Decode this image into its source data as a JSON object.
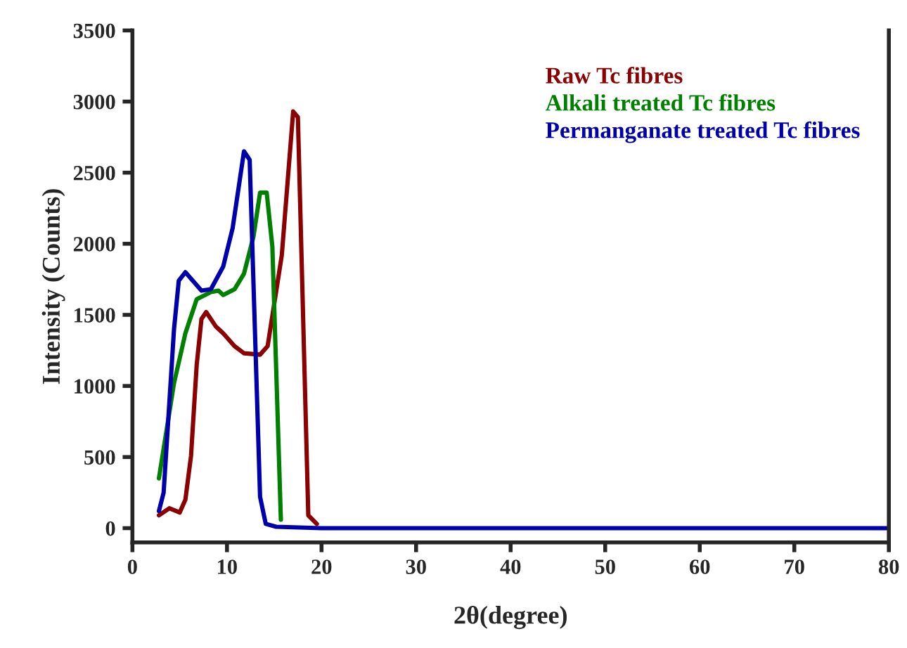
{
  "chart_data": {
    "type": "line",
    "xlabel": "2θ(degree)",
    "ylabel": "Intensity (Counts)",
    "xlim": [
      0,
      80
    ],
    "xticks": [
      0,
      10,
      20,
      30,
      40,
      50,
      60,
      70,
      80
    ],
    "ylim": [
      -100,
      3500
    ],
    "yticks": [
      0,
      500,
      1000,
      1500,
      2000,
      2500,
      3000,
      3500
    ],
    "grid": false,
    "legend": "top right",
    "marker": "none",
    "line_style": "solid",
    "series": [
      {
        "name": "Raw Tc fibres",
        "color": "#8b0000",
        "x": [
          2.8,
          3.9,
          5.0,
          5.6,
          6.2,
          6.8,
          7.3,
          7.8,
          8.8,
          9.6,
          10.8,
          11.8,
          13.5,
          14.3,
          15.8,
          17.0,
          17.5,
          18.6,
          19.5
        ],
        "values": [
          90,
          140,
          110,
          200,
          510,
          1150,
          1470,
          1520,
          1420,
          1370,
          1280,
          1230,
          1220,
          1280,
          1920,
          2930,
          2890,
          90,
          30
        ]
      },
      {
        "name": "Alkali treated Tc fibres",
        "color": "#008000",
        "x": [
          2.8,
          4.4,
          5.6,
          6.8,
          8.3,
          9.1,
          9.6,
          10.8,
          11.8,
          12.8,
          13.5,
          14.2,
          14.8,
          15.7
        ],
        "values": [
          350,
          1020,
          1370,
          1610,
          1660,
          1670,
          1640,
          1680,
          1790,
          2050,
          2360,
          2360,
          1980,
          60
        ]
      },
      {
        "name": "Permanganate treated Tc fibres",
        "color": "#0000aa",
        "x": [
          2.8,
          3.3,
          4.4,
          4.9,
          5.6,
          7.3,
          8.3,
          9.6,
          10.6,
          11.8,
          12.4,
          13.5,
          14.1,
          15.2,
          20,
          30,
          40,
          50,
          60,
          70,
          80
        ],
        "values": [
          120,
          250,
          1400,
          1740,
          1800,
          1670,
          1680,
          1840,
          2110,
          2650,
          2590,
          220,
          30,
          10,
          0,
          0,
          0,
          0,
          0,
          0,
          0
        ]
      }
    ]
  }
}
